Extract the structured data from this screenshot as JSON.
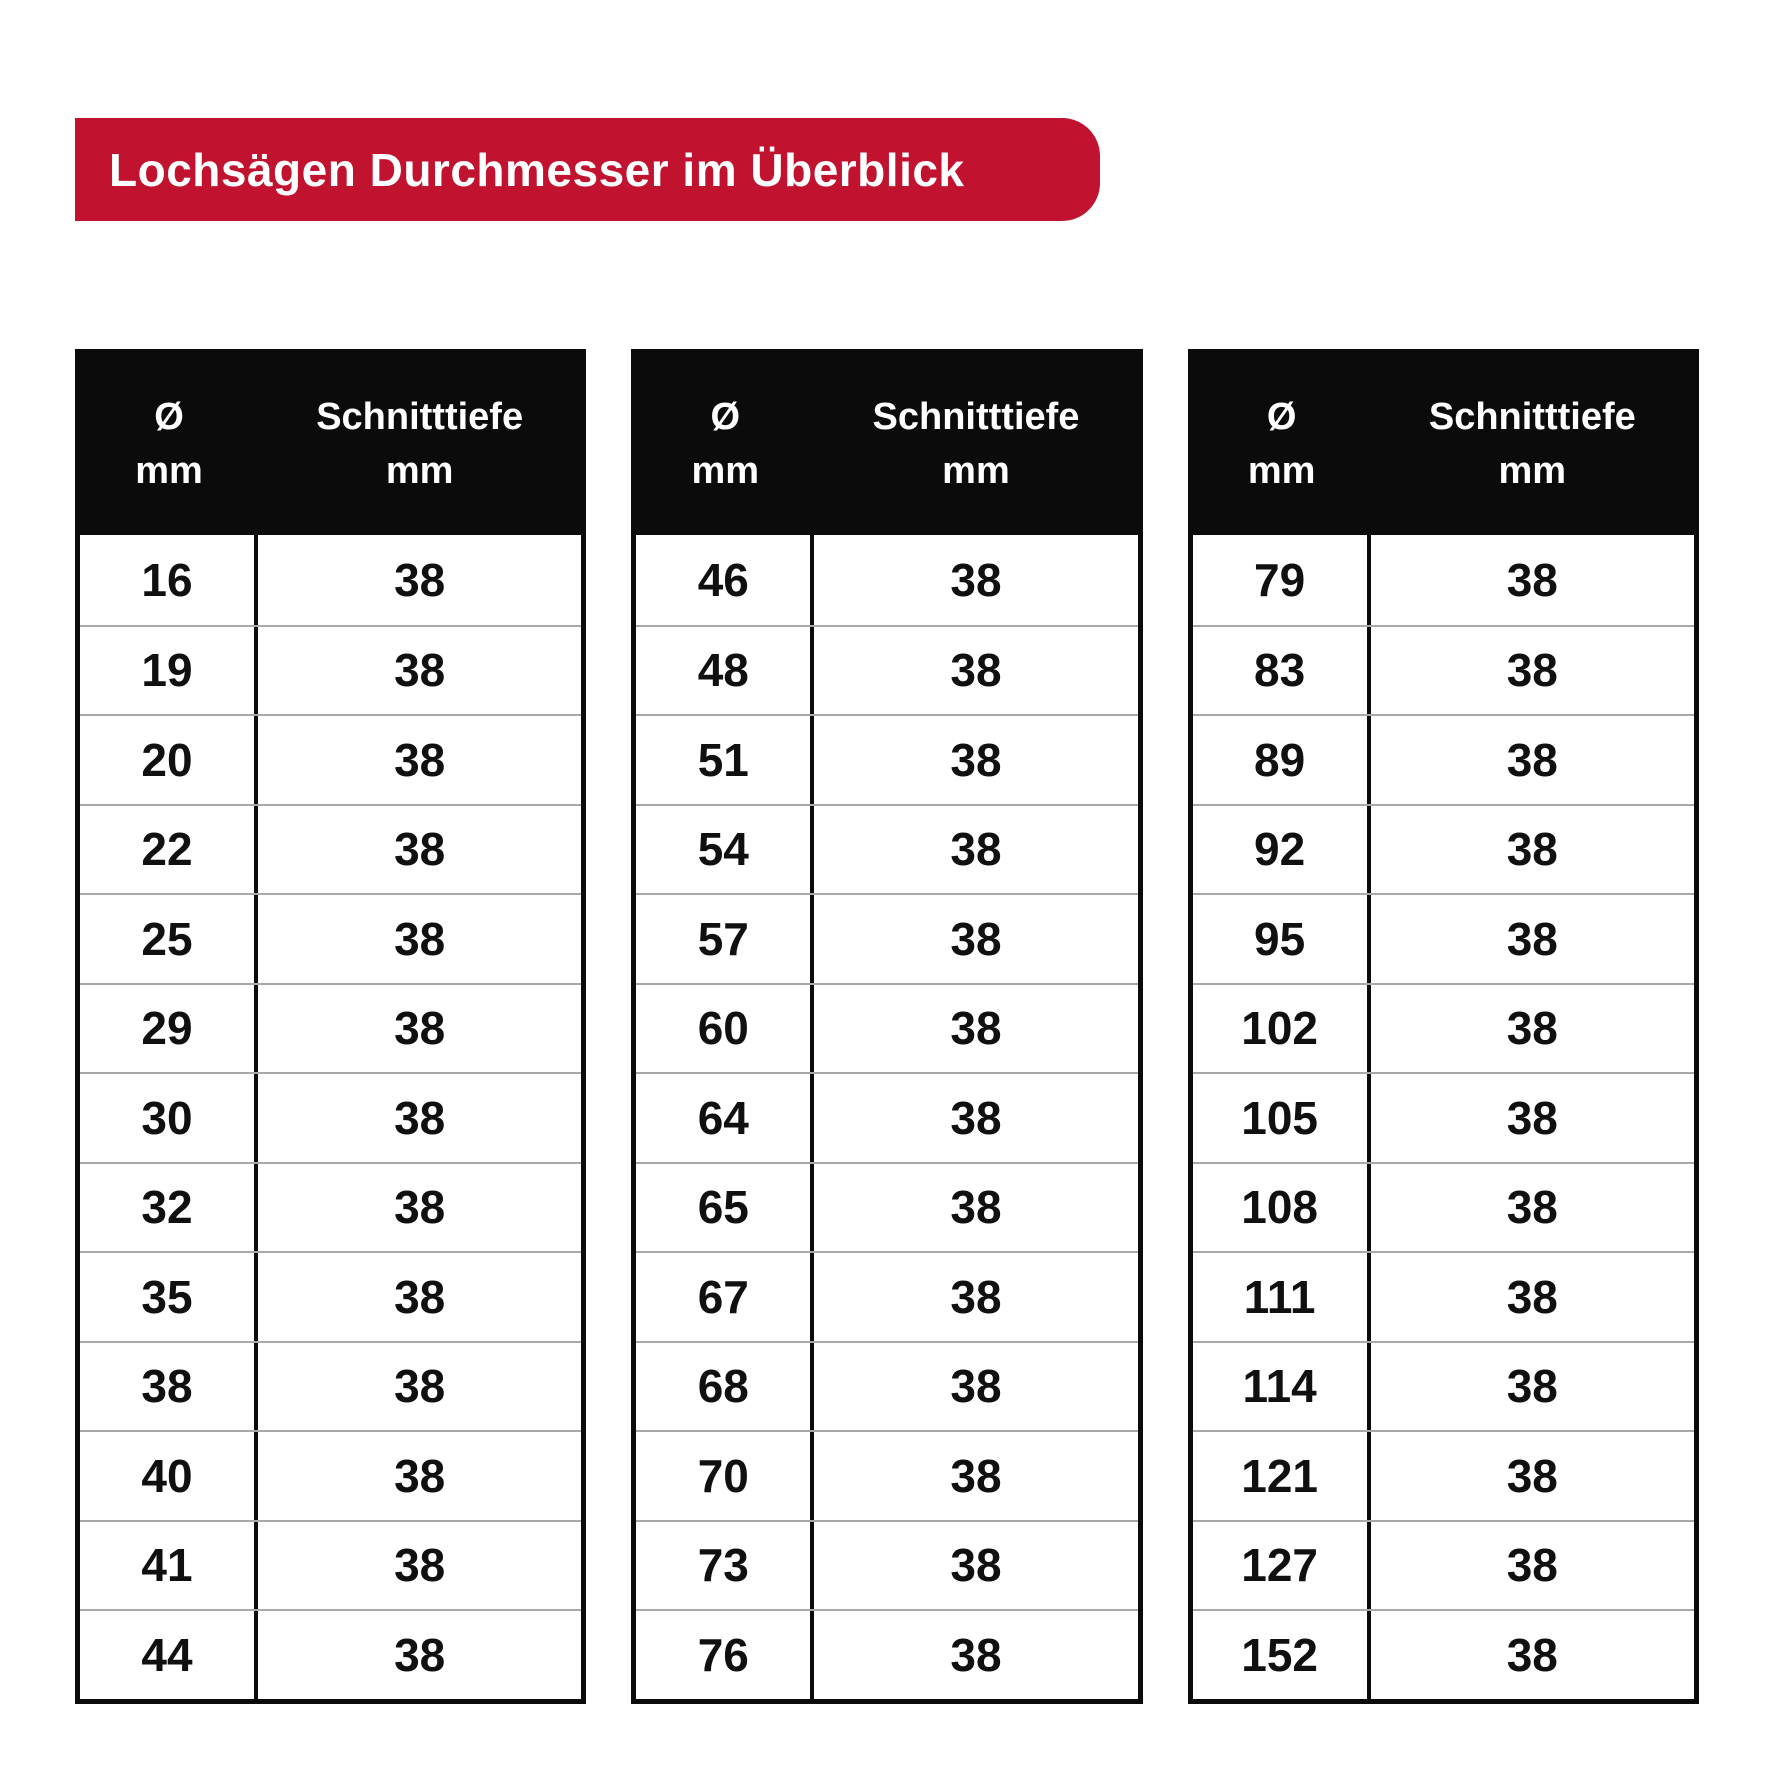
{
  "banner": {
    "title": "Lochsägen Durchmesser im Überblick",
    "bg_color": "#c1132f",
    "text_color": "#ffffff"
  },
  "tables": [
    {
      "header": {
        "col1_line1": "Ø",
        "col1_line2": "mm",
        "col2_line1": "Schnitttiefe",
        "col2_line2": "mm"
      },
      "rows": [
        {
          "diameter": "16",
          "depth": "38"
        },
        {
          "diameter": "19",
          "depth": "38"
        },
        {
          "diameter": "20",
          "depth": "38"
        },
        {
          "diameter": "22",
          "depth": "38"
        },
        {
          "diameter": "25",
          "depth": "38"
        },
        {
          "diameter": "29",
          "depth": "38"
        },
        {
          "diameter": "30",
          "depth": "38"
        },
        {
          "diameter": "32",
          "depth": "38"
        },
        {
          "diameter": "35",
          "depth": "38"
        },
        {
          "diameter": "38",
          "depth": "38"
        },
        {
          "diameter": "40",
          "depth": "38"
        },
        {
          "diameter": "41",
          "depth": "38"
        },
        {
          "diameter": "44",
          "depth": "38"
        }
      ]
    },
    {
      "header": {
        "col1_line1": "Ø",
        "col1_line2": "mm",
        "col2_line1": "Schnitttiefe",
        "col2_line2": "mm"
      },
      "rows": [
        {
          "diameter": "46",
          "depth": "38"
        },
        {
          "diameter": "48",
          "depth": "38"
        },
        {
          "diameter": "51",
          "depth": "38"
        },
        {
          "diameter": "54",
          "depth": "38"
        },
        {
          "diameter": "57",
          "depth": "38"
        },
        {
          "diameter": "60",
          "depth": "38"
        },
        {
          "diameter": "64",
          "depth": "38"
        },
        {
          "diameter": "65",
          "depth": "38"
        },
        {
          "diameter": "67",
          "depth": "38"
        },
        {
          "diameter": "68",
          "depth": "38"
        },
        {
          "diameter": "70",
          "depth": "38"
        },
        {
          "diameter": "73",
          "depth": "38"
        },
        {
          "diameter": "76",
          "depth": "38"
        }
      ]
    },
    {
      "header": {
        "col1_line1": "Ø",
        "col1_line2": "mm",
        "col2_line1": "Schnitttiefe",
        "col2_line2": "mm"
      },
      "rows": [
        {
          "diameter": "79",
          "depth": "38"
        },
        {
          "diameter": "83",
          "depth": "38"
        },
        {
          "diameter": "89",
          "depth": "38"
        },
        {
          "diameter": "92",
          "depth": "38"
        },
        {
          "diameter": "95",
          "depth": "38"
        },
        {
          "diameter": "102",
          "depth": "38"
        },
        {
          "diameter": "105",
          "depth": "38"
        },
        {
          "diameter": "108",
          "depth": "38"
        },
        {
          "diameter": "111",
          "depth": "38"
        },
        {
          "diameter": "114",
          "depth": "38"
        },
        {
          "diameter": "121",
          "depth": "38"
        },
        {
          "diameter": "127",
          "depth": "38"
        },
        {
          "diameter": "152",
          "depth": "38"
        }
      ]
    }
  ]
}
